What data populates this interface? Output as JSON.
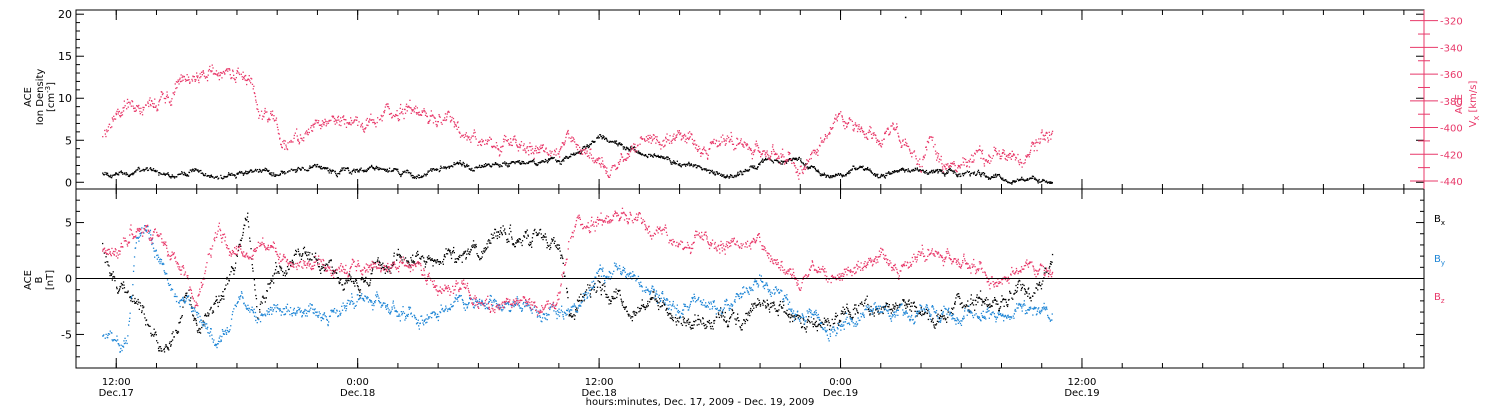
{
  "xaxis": {
    "title": "hours:minutes, Dec. 17, 2009 - Dec. 19, 2009",
    "hour_min": -2,
    "hour_max": 65,
    "major_ticks": [
      {
        "hour": 0,
        "time": "12:00",
        "day": "Dec.17"
      },
      {
        "hour": 12,
        "time": "0:00",
        "day": "Dec.18"
      },
      {
        "hour": 24,
        "time": "12:00",
        "day": "Dec.18"
      },
      {
        "hour": 36,
        "time": "0:00",
        "day": "Dec.19"
      },
      {
        "hour": 48,
        "time": "12:00",
        "day": "Dec.19"
      }
    ],
    "minor_step_hours": 2
  },
  "colors": {
    "black": "#000000",
    "pink": "#e8396a",
    "blue": "#1f86d6"
  },
  "chart_data": [
    {
      "type": "scatter",
      "panel": "top",
      "ylabel": "ACE\nIon Density\n[cm⁻³]",
      "ylim": [
        -0.8,
        20.5
      ],
      "yticks": [
        0,
        5,
        10,
        15,
        20
      ],
      "y2label": "ACE\nVX [km/s]",
      "y2label_parts": {
        "line1": "ACE",
        "v": "V",
        "sub": "X",
        "unit": "[km/s]"
      },
      "y2lim": [
        -446,
        -312
      ],
      "y2ticks": [
        -320,
        -340,
        -360,
        -380,
        -400,
        -420,
        -440
      ],
      "series": [
        {
          "name": "Ion Density",
          "axis": "left",
          "color": "#000000",
          "keys": [
            [
              -0.7,
              1.0
            ],
            [
              0,
              0.9
            ],
            [
              2,
              1.5
            ],
            [
              3,
              0.9
            ],
            [
              4,
              1.4
            ],
            [
              5,
              0.6
            ],
            [
              6,
              1.1
            ],
            [
              7,
              1.5
            ],
            [
              8,
              0.9
            ],
            [
              9,
              1.8
            ],
            [
              10,
              1.9
            ],
            [
              11,
              1.4
            ],
            [
              12,
              1.4
            ],
            [
              13,
              1.9
            ],
            [
              14,
              1.3
            ],
            [
              15,
              0.8
            ],
            [
              16,
              1.4
            ],
            [
              17,
              2.1
            ],
            [
              18,
              1.8
            ],
            [
              19,
              2.1
            ],
            [
              20,
              2.5
            ],
            [
              21,
              2.6
            ],
            [
              22,
              2.4
            ],
            [
              23,
              3.8
            ],
            [
              24,
              5.6
            ],
            [
              25,
              4.5
            ],
            [
              26,
              3.5
            ],
            [
              27,
              3.2
            ],
            [
              28,
              2.3
            ],
            [
              29,
              1.8
            ],
            [
              30,
              1.0
            ],
            [
              31,
              1.2
            ],
            [
              32,
              2.4
            ],
            [
              33,
              2.8
            ],
            [
              34,
              2.4
            ],
            [
              35,
              0.8
            ],
            [
              36,
              0.9
            ],
            [
              37,
              1.8
            ],
            [
              38,
              0.8
            ],
            [
              39,
              1.8
            ],
            [
              40,
              1.4
            ],
            [
              41,
              1.2
            ],
            [
              42,
              0.9
            ],
            [
              43,
              0.9
            ],
            [
              44,
              0.5
            ],
            [
              45,
              0.2
            ],
            [
              46,
              0.3
            ],
            [
              46.5,
              0.4
            ]
          ],
          "noise": 0.4,
          "extra_points": [
            [
              39.2,
              19.7
            ]
          ]
        },
        {
          "name": "VX",
          "axis": "right",
          "color": "#e8396a",
          "keys": [
            [
              -0.7,
              -405
            ],
            [
              0,
              -385
            ],
            [
              1,
              -382
            ],
            [
              2,
              -380
            ],
            [
              2.7,
              -378
            ],
            [
              3,
              -366
            ],
            [
              4,
              -362
            ],
            [
              5,
              -361
            ],
            [
              6,
              -360
            ],
            [
              6.7,
              -364
            ],
            [
              7,
              -388
            ],
            [
              7.8,
              -398
            ],
            [
              8.3,
              -412
            ],
            [
              9,
              -406
            ],
            [
              10,
              -400
            ],
            [
              11,
              -400
            ],
            [
              12,
              -393
            ],
            [
              13,
              -390
            ],
            [
              14,
              -387
            ],
            [
              15,
              -386
            ],
            [
              16,
              -394
            ],
            [
              17,
              -397
            ],
            [
              17.5,
              -412
            ],
            [
              18,
              -410
            ],
            [
              19,
              -410
            ],
            [
              20,
              -410
            ],
            [
              21,
              -418
            ],
            [
              22,
              -419
            ],
            [
              22.6,
              -408
            ],
            [
              23,
              -415
            ],
            [
              24,
              -426
            ],
            [
              25,
              -430
            ],
            [
              26,
              -405
            ],
            [
              27,
              -414
            ],
            [
              28,
              -405
            ],
            [
              29,
              -415
            ],
            [
              30,
              -410
            ],
            [
              31,
              -414
            ],
            [
              32,
              -418
            ],
            [
              33,
              -420
            ],
            [
              34,
              -426
            ],
            [
              35,
              -412
            ],
            [
              35.5,
              -400
            ],
            [
              36,
              -392
            ],
            [
              37,
              -400
            ],
            [
              38,
              -408
            ],
            [
              38.5,
              -400
            ],
            [
              39,
              -416
            ],
            [
              40,
              -426
            ],
            [
              40.3,
              -408
            ],
            [
              41,
              -426
            ],
            [
              42,
              -425
            ],
            [
              43,
              -424
            ],
            [
              44,
              -418
            ],
            [
              45,
              -422
            ],
            [
              46,
              -410
            ],
            [
              46.5,
              -406
            ]
          ],
          "noise": 7
        }
      ]
    },
    {
      "type": "scatter",
      "panel": "bottom",
      "ylabel": "ACE\nB\n[nT]",
      "ylim": [
        -8,
        8
      ],
      "yticks": [
        -5,
        0,
        5
      ],
      "zero_line": true,
      "legend_position": "right",
      "legend": [
        {
          "text": "B",
          "sub": "x",
          "color": "#000000"
        },
        {
          "text": "B",
          "sub": "y",
          "color": "#1f86d6"
        },
        {
          "text": "B",
          "sub": "z",
          "color": "#e8396a"
        }
      ],
      "series": [
        {
          "name": "Bx",
          "color": "#000000",
          "keys": [
            [
              -0.7,
              3
            ],
            [
              0,
              -1
            ],
            [
              1,
              -2
            ],
            [
              1.5,
              -4
            ],
            [
              2,
              -6
            ],
            [
              2.5,
              -7
            ],
            [
              3,
              -5
            ],
            [
              3.5,
              -1
            ],
            [
              4,
              -4
            ],
            [
              5,
              -2
            ],
            [
              6,
              1
            ],
            [
              6.5,
              5
            ],
            [
              7,
              -2
            ],
            [
              8,
              1
            ],
            [
              9,
              2
            ],
            [
              10,
              1.5
            ],
            [
              11,
              0.5
            ],
            [
              12,
              -1
            ],
            [
              13,
              1.5
            ],
            [
              14,
              2
            ],
            [
              15,
              2
            ],
            [
              16,
              2
            ],
            [
              17,
              1.5
            ],
            [
              18,
              3
            ],
            [
              19,
              4
            ],
            [
              20,
              4
            ],
            [
              21,
              4
            ],
            [
              22,
              3.5
            ],
            [
              22.5,
              -3
            ],
            [
              23,
              -2
            ],
            [
              24,
              -1
            ],
            [
              25,
              -2
            ],
            [
              26,
              -3
            ],
            [
              27,
              -2
            ],
            [
              28,
              -3
            ],
            [
              29,
              -4
            ],
            [
              30,
              -3
            ],
            [
              31,
              -4
            ],
            [
              32,
              -2
            ],
            [
              33,
              -3
            ],
            [
              34,
              -4
            ],
            [
              35,
              -4
            ],
            [
              36,
              -4
            ],
            [
              37,
              -2
            ],
            [
              38,
              -3
            ],
            [
              39,
              -3
            ],
            [
              40,
              -3
            ],
            [
              41,
              -3
            ],
            [
              42,
              -2
            ],
            [
              43,
              -2
            ],
            [
              44,
              -2
            ],
            [
              45,
              -1
            ],
            [
              46,
              -1
            ],
            [
              46.5,
              2
            ]
          ],
          "noise": 0.9
        },
        {
          "name": "By",
          "color": "#1f86d6",
          "keys": [
            [
              -0.7,
              -5
            ],
            [
              0,
              -5
            ],
            [
              0.5,
              -6
            ],
            [
              1,
              4
            ],
            [
              1.5,
              5
            ],
            [
              2,
              2
            ],
            [
              3,
              -2
            ],
            [
              4,
              -3
            ],
            [
              5,
              -6
            ],
            [
              5.5,
              -4
            ],
            [
              6,
              -2
            ],
            [
              7,
              -3
            ],
            [
              8,
              -3
            ],
            [
              9,
              -3
            ],
            [
              10,
              -3
            ],
            [
              11,
              -3
            ],
            [
              12,
              -2
            ],
            [
              13,
              -2
            ],
            [
              14,
              -3
            ],
            [
              15,
              -3
            ],
            [
              16,
              -3
            ],
            [
              17,
              -2
            ],
            [
              18,
              -2
            ],
            [
              19,
              -2
            ],
            [
              20,
              -3
            ],
            [
              21,
              -3
            ],
            [
              22,
              -3
            ],
            [
              23,
              -2
            ],
            [
              24,
              0
            ],
            [
              25,
              1
            ],
            [
              26,
              0
            ],
            [
              27,
              -2
            ],
            [
              28,
              -3
            ],
            [
              29,
              -2
            ],
            [
              30,
              -3
            ],
            [
              31,
              -2
            ],
            [
              32,
              0
            ],
            [
              33,
              -1
            ],
            [
              34,
              -4
            ],
            [
              35,
              -4
            ],
            [
              36,
              -4
            ],
            [
              37,
              -3
            ],
            [
              38,
              -3
            ],
            [
              39,
              -3
            ],
            [
              40,
              -3
            ],
            [
              41,
              -3
            ],
            [
              42,
              -3
            ],
            [
              43,
              -3
            ],
            [
              44,
              -3
            ],
            [
              45,
              -3
            ],
            [
              46,
              -3
            ],
            [
              46.5,
              -2.5
            ]
          ],
          "noise": 0.8
        },
        {
          "name": "Bz",
          "color": "#e8396a",
          "keys": [
            [
              -0.7,
              3
            ],
            [
              0,
              2
            ],
            [
              1,
              5
            ],
            [
              2,
              4
            ],
            [
              3,
              2
            ],
            [
              4,
              -2
            ],
            [
              5,
              4
            ],
            [
              6,
              2
            ],
            [
              7,
              3
            ],
            [
              8,
              2
            ],
            [
              9,
              2
            ],
            [
              10,
              1.5
            ],
            [
              11,
              1
            ],
            [
              12,
              1
            ],
            [
              13,
              1
            ],
            [
              14,
              1
            ],
            [
              15,
              1
            ],
            [
              16,
              -1
            ],
            [
              17,
              -1
            ],
            [
              18,
              -2
            ],
            [
              19,
              -2.5
            ],
            [
              20,
              -2.5
            ],
            [
              21,
              -3
            ],
            [
              22,
              -1
            ],
            [
              22.5,
              4
            ],
            [
              23,
              5
            ],
            [
              24,
              5
            ],
            [
              25,
              6
            ],
            [
              26,
              5
            ],
            [
              27,
              4
            ],
            [
              28,
              3
            ],
            [
              29,
              4
            ],
            [
              30,
              3
            ],
            [
              31,
              3
            ],
            [
              32,
              3
            ],
            [
              33,
              1
            ],
            [
              34,
              0
            ],
            [
              35,
              1
            ],
            [
              36,
              0
            ],
            [
              37,
              1
            ],
            [
              38,
              2
            ],
            [
              39,
              1
            ],
            [
              40,
              2
            ],
            [
              41,
              2
            ],
            [
              42,
              1.5
            ],
            [
              43,
              1
            ],
            [
              44,
              0
            ],
            [
              45,
              1
            ],
            [
              46,
              1
            ],
            [
              46.5,
              0.5
            ]
          ],
          "noise": 0.8
        }
      ]
    }
  ]
}
